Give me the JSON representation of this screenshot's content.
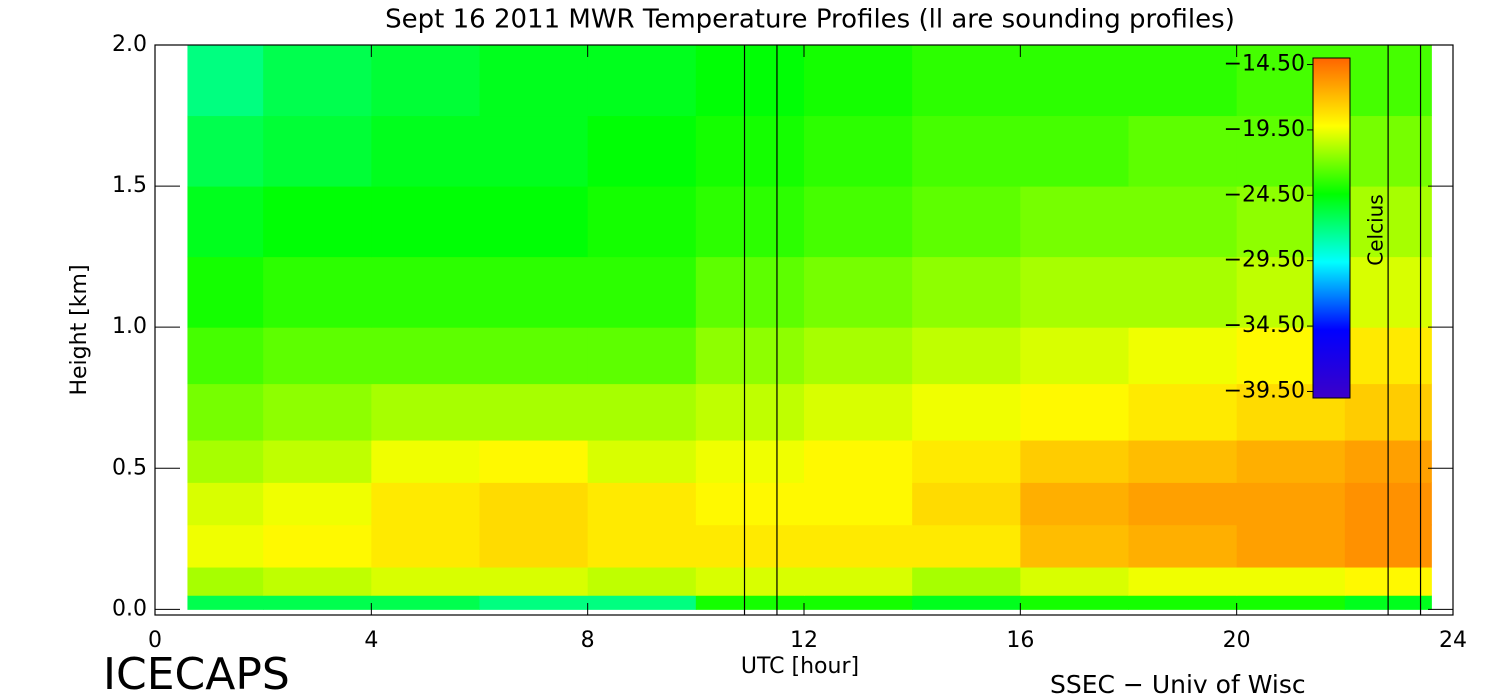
{
  "chart_data": {
    "type": "heatmap",
    "title": "Sept 16 2011 MWR Temperature Profiles (ll are sounding profiles)",
    "xlabel": "UTC [hour]",
    "ylabel": "Height [km]",
    "colorbar_label": "Celcius",
    "footer_left": "ICECAPS",
    "footer_right": "SSEC − Univ of Wisc",
    "xlim": [
      0,
      24
    ],
    "xticks": [
      0,
      4,
      8,
      12,
      16,
      20,
      24
    ],
    "ylim": [
      -0.02,
      2.0
    ],
    "yticks": [
      {
        "value": 0,
        "label": "0.0"
      },
      0.5,
      {
        "value": 1,
        "label": "1.0"
      },
      1.5,
      {
        "value": 2,
        "label": "2.0"
      }
    ],
    "x_edges": [
      0.6,
      2,
      4,
      6,
      8,
      10,
      12,
      14,
      16,
      18,
      20,
      22,
      23.6
    ],
    "y_edges": [
      0,
      0.05,
      0.15,
      0.3,
      0.45,
      0.6,
      0.8,
      1.0,
      1.25,
      1.5,
      1.75,
      2.0
    ],
    "z": [
      [
        -26,
        -26,
        -26,
        -27,
        -27,
        -24,
        -24,
        -25,
        -24,
        -24,
        -24,
        -25
      ],
      [
        -21,
        -20.5,
        -20,
        -20,
        -20.5,
        -20,
        -20,
        -21,
        -20,
        -19.5,
        -19.5,
        -19
      ],
      [
        -19.5,
        -19,
        -18.5,
        -18,
        -18.5,
        -18.5,
        -18.5,
        -18.5,
        -17,
        -16.5,
        -16,
        -15.5
      ],
      [
        -20,
        -19.5,
        -18.5,
        -18,
        -18.5,
        -19,
        -19,
        -18,
        -16.5,
        -16,
        -16,
        -15.5
      ],
      [
        -21,
        -20.5,
        -19.5,
        -19,
        -20,
        -19.5,
        -19,
        -18.5,
        -17.5,
        -17,
        -16.5,
        -16
      ],
      [
        -22,
        -21.5,
        -21,
        -21,
        -21,
        -20.5,
        -20,
        -19.5,
        -19,
        -18.5,
        -18,
        -17.5
      ],
      [
        -23,
        -22.5,
        -22.5,
        -22.5,
        -22.5,
        -21.5,
        -21,
        -20.5,
        -20,
        -19.5,
        -19,
        -18.5
      ],
      [
        -24,
        -23.5,
        -23.5,
        -23.5,
        -23.5,
        -22.5,
        -22,
        -21.5,
        -21,
        -21,
        -20.5,
        -20
      ],
      [
        -25,
        -24.5,
        -24.5,
        -24.5,
        -24,
        -23.5,
        -23,
        -22.5,
        -22,
        -22,
        -21.5,
        -21
      ],
      [
        -26,
        -25.5,
        -25,
        -25,
        -24.5,
        -24,
        -23.5,
        -23,
        -23,
        -22.5,
        -22.5,
        -22
      ],
      [
        -27,
        -26,
        -25.5,
        -25,
        -25,
        -24.5,
        -24,
        -23.5,
        -23.5,
        -23.5,
        -23,
        -23
      ]
    ],
    "zlim": [
      -40,
      -14
    ],
    "zticks": [
      {
        "value": -14.5,
        "label": "−14.50"
      },
      {
        "value": -19.5,
        "label": "−19.50"
      },
      {
        "value": -24.5,
        "label": "−24.50"
      },
      {
        "value": -29.5,
        "label": "−29.50"
      },
      {
        "value": -34.5,
        "label": "−34.50"
      },
      {
        "value": -39.5,
        "label": "−39.50"
      }
    ],
    "colormap": [
      "#3c00c8",
      "#0000ff",
      "#00ffff",
      "#00ff00",
      "#ffff00",
      "#ff6400"
    ],
    "sounding_times": [
      10.9,
      11.5,
      22.8,
      23.4
    ]
  }
}
